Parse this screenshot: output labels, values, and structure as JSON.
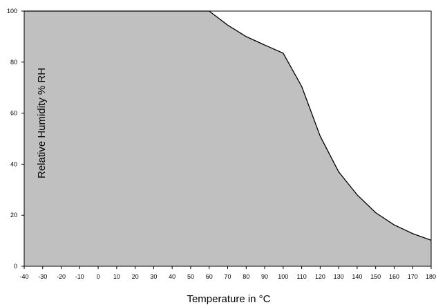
{
  "chart_data": {
    "type": "area",
    "title": "",
    "xlabel": "Temperature in °C",
    "ylabel": "Relative Humidity % RH",
    "xlim": [
      -40,
      180
    ],
    "ylim": [
      0,
      100
    ],
    "x_ticks": [
      -40,
      -30,
      -20,
      -10,
      0,
      10,
      20,
      30,
      40,
      50,
      60,
      70,
      80,
      90,
      100,
      110,
      120,
      130,
      140,
      150,
      160,
      170,
      180
    ],
    "y_ticks": [
      0,
      20,
      40,
      60,
      80,
      100
    ],
    "grid": false,
    "series": [
      {
        "x": [
          -40,
          60,
          70,
          80,
          90,
          100,
          110,
          120,
          130,
          140,
          150,
          160,
          170,
          180
        ],
        "y": [
          100,
          100,
          94.5,
          90,
          86.7,
          83.5,
          70.5,
          51,
          37,
          28,
          21,
          16.2,
          12.8,
          10.2
        ]
      }
    ],
    "colors": {
      "fill": "#c0c0c0",
      "line": "#000000"
    }
  }
}
